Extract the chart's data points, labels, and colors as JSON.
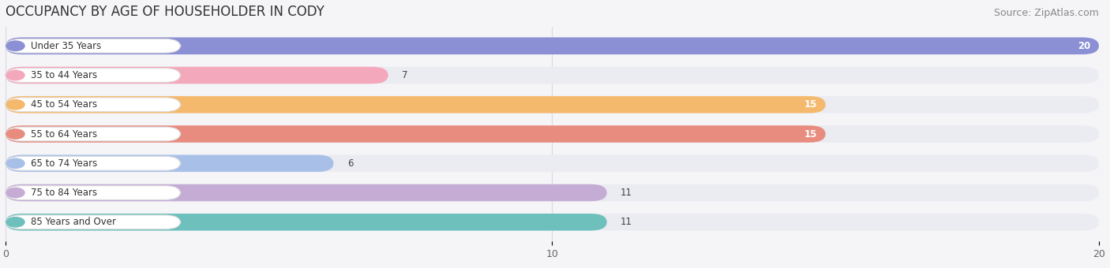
{
  "title": "OCCUPANCY BY AGE OF HOUSEHOLDER IN CODY",
  "source": "Source: ZipAtlas.com",
  "categories": [
    "Under 35 Years",
    "35 to 44 Years",
    "45 to 54 Years",
    "55 to 64 Years",
    "65 to 74 Years",
    "75 to 84 Years",
    "85 Years and Over"
  ],
  "values": [
    20,
    7,
    15,
    15,
    6,
    11,
    11
  ],
  "bar_colors": [
    "#8b8fd4",
    "#f4a8bc",
    "#f5b96e",
    "#e88c80",
    "#a8c0e8",
    "#c4acd4",
    "#6ec0bc"
  ],
  "bar_bg_color": "#ebebf2",
  "label_bg_color": "#ffffff",
  "label_border_color": "#dddddd",
  "xlim": [
    0,
    20
  ],
  "xticks": [
    0,
    10,
    20
  ],
  "title_fontsize": 12,
  "source_fontsize": 9,
  "label_fontsize": 8.5,
  "value_fontsize": 8.5,
  "bar_height": 0.58,
  "figsize": [
    14.06,
    3.4
  ],
  "dpi": 100,
  "background_color": "#f5f5f8",
  "fig_bg_color": "#f5f5f8",
  "grid_color": "#d8d8e0",
  "inside_value_threshold": 0.75
}
